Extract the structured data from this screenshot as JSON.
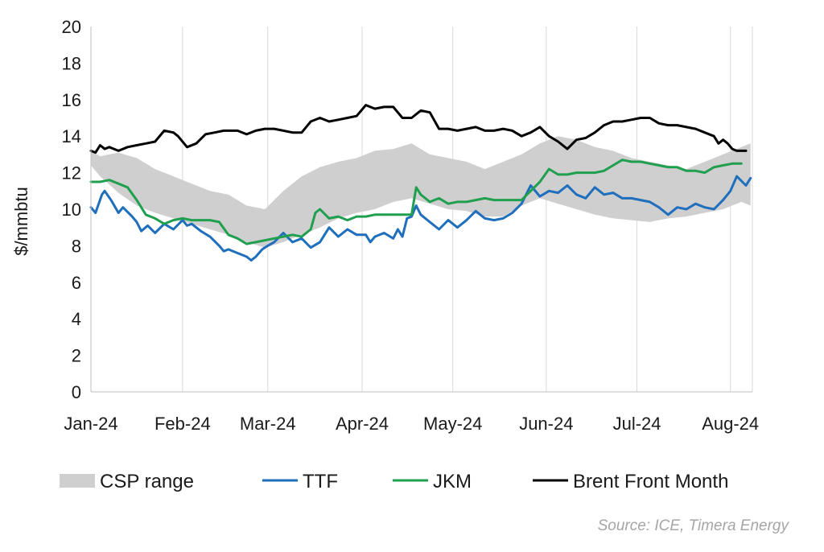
{
  "chart_data": {
    "type": "line",
    "ylabel": "$/mmbtu",
    "xlabel": "",
    "ylim": [
      0,
      20
    ],
    "yticks": [
      0,
      2,
      4,
      6,
      8,
      10,
      12,
      14,
      16,
      18,
      20
    ],
    "xlim": [
      0,
      7.22
    ],
    "xticks": [
      {
        "label": "Jan-24",
        "pos": 0
      },
      {
        "label": "Feb-24",
        "pos": 1
      },
      {
        "label": "Mar-24",
        "pos": 1.93
      },
      {
        "label": "Apr-24",
        "pos": 2.96
      },
      {
        "label": "May-24",
        "pos": 3.95
      },
      {
        "label": "Jun-24",
        "pos": 4.97
      },
      {
        "label": "Jul-24",
        "pos": 5.96
      },
      {
        "label": "Aug-24",
        "pos": 6.98
      }
    ],
    "grid": "vertical",
    "legend": [
      {
        "key": "csp",
        "label": "CSP range",
        "kind": "area",
        "color": "#d0cfd0"
      },
      {
        "key": "ttf",
        "label": "TTF",
        "kind": "line",
        "color": "#1f6fbd"
      },
      {
        "key": "jkm",
        "label": "JKM",
        "kind": "line",
        "color": "#20a04f"
      },
      {
        "key": "brent",
        "label": "Brent Front Month",
        "kind": "line",
        "color": "#000000"
      }
    ],
    "band": {
      "name": "CSP range",
      "x": [
        0,
        0.1,
        0.3,
        0.5,
        0.7,
        0.9,
        1.1,
        1.3,
        1.5,
        1.7,
        1.9,
        2.1,
        2.3,
        2.5,
        2.7,
        2.9,
        3.1,
        3.3,
        3.5,
        3.7,
        3.9,
        4.1,
        4.3,
        4.5,
        4.7,
        4.9,
        5.1,
        5.3,
        5.5,
        5.7,
        5.9,
        6.1,
        6.3,
        6.5,
        6.7,
        6.9,
        7.1,
        7.2
      ],
      "upper": [
        13.2,
        12.9,
        13.1,
        12.8,
        12.2,
        11.8,
        11.4,
        11.0,
        10.8,
        10.2,
        10.0,
        11.0,
        11.8,
        12.3,
        12.6,
        12.8,
        13.2,
        13.3,
        13.6,
        13.0,
        12.8,
        12.6,
        12.2,
        12.6,
        13.0,
        13.6,
        14.0,
        13.8,
        13.4,
        13.2,
        12.8,
        12.6,
        12.4,
        12.2,
        12.6,
        13.0,
        13.4,
        13.6
      ],
      "lower": [
        12.4,
        11.8,
        10.9,
        10.2,
        9.8,
        9.5,
        9.2,
        8.9,
        8.6,
        8.2,
        7.9,
        8.2,
        8.6,
        9.0,
        9.5,
        9.8,
        10.0,
        10.4,
        10.6,
        10.3,
        10.0,
        9.9,
        9.6,
        9.6,
        10.2,
        10.6,
        10.3,
        10.0,
        9.7,
        9.5,
        9.4,
        9.3,
        9.5,
        9.6,
        9.8,
        10.0,
        10.4,
        10.2
      ]
    },
    "series": [
      {
        "name": "TTF",
        "key": "ttf",
        "color": "#1f6fbd",
        "x": [
          0,
          0.05,
          0.12,
          0.15,
          0.22,
          0.3,
          0.35,
          0.45,
          0.5,
          0.55,
          0.62,
          0.7,
          0.8,
          0.9,
          1.0,
          1.05,
          1.1,
          1.2,
          1.3,
          1.4,
          1.45,
          1.5,
          1.6,
          1.7,
          1.75,
          1.8,
          1.87,
          1.93,
          2.0,
          2.1,
          2.2,
          2.3,
          2.4,
          2.5,
          2.6,
          2.7,
          2.8,
          2.9,
          3.0,
          3.05,
          3.1,
          3.2,
          3.3,
          3.35,
          3.4,
          3.45,
          3.5,
          3.55,
          3.6,
          3.7,
          3.8,
          3.9,
          4.0,
          4.1,
          4.2,
          4.3,
          4.4,
          4.5,
          4.6,
          4.7,
          4.8,
          4.9,
          5.0,
          5.1,
          5.2,
          5.3,
          5.4,
          5.5,
          5.6,
          5.7,
          5.8,
          5.9,
          6.0,
          6.1,
          6.2,
          6.3,
          6.4,
          6.5,
          6.6,
          6.7,
          6.8,
          6.9,
          6.98,
          7.05,
          7.15,
          7.2
        ],
        "y": [
          10.1,
          9.8,
          10.8,
          11.0,
          10.5,
          9.8,
          10.1,
          9.6,
          9.3,
          8.8,
          9.1,
          8.7,
          9.2,
          8.9,
          9.4,
          9.1,
          9.2,
          8.8,
          8.5,
          8.0,
          7.7,
          7.8,
          7.6,
          7.4,
          7.2,
          7.4,
          7.8,
          8.0,
          8.2,
          8.7,
          8.2,
          8.4,
          7.9,
          8.2,
          9.0,
          8.5,
          8.9,
          8.6,
          8.6,
          8.2,
          8.5,
          8.7,
          8.4,
          8.9,
          8.5,
          9.5,
          9.6,
          10.2,
          9.7,
          9.3,
          8.9,
          9.4,
          9.0,
          9.4,
          9.9,
          9.5,
          9.4,
          9.5,
          9.8,
          10.3,
          11.3,
          10.7,
          11.0,
          10.9,
          11.3,
          10.8,
          10.6,
          11.2,
          10.8,
          10.9,
          10.6,
          10.6,
          10.5,
          10.4,
          10.1,
          9.7,
          10.1,
          10.0,
          10.3,
          10.1,
          10.0,
          10.5,
          11.0,
          11.8,
          11.3,
          11.7
        ]
      },
      {
        "name": "JKM",
        "key": "jkm",
        "color": "#20a04f",
        "x": [
          0,
          0.1,
          0.2,
          0.3,
          0.4,
          0.5,
          0.6,
          0.7,
          0.8,
          0.9,
          1.0,
          1.1,
          1.2,
          1.3,
          1.4,
          1.5,
          1.6,
          1.7,
          1.8,
          1.9,
          2.0,
          2.1,
          2.2,
          2.3,
          2.4,
          2.45,
          2.5,
          2.6,
          2.7,
          2.8,
          2.9,
          3.0,
          3.1,
          3.2,
          3.3,
          3.4,
          3.5,
          3.55,
          3.6,
          3.7,
          3.8,
          3.9,
          4.0,
          4.1,
          4.2,
          4.3,
          4.4,
          4.5,
          4.6,
          4.7,
          4.8,
          4.9,
          5.0,
          5.1,
          5.2,
          5.3,
          5.4,
          5.5,
          5.6,
          5.7,
          5.8,
          5.9,
          6.0,
          6.1,
          6.2,
          6.3,
          6.4,
          6.5,
          6.6,
          6.7,
          6.8,
          6.9,
          7.0,
          7.1
        ],
        "y": [
          11.5,
          11.5,
          11.6,
          11.4,
          11.2,
          10.5,
          9.7,
          9.5,
          9.2,
          9.4,
          9.5,
          9.4,
          9.4,
          9.4,
          9.3,
          8.6,
          8.4,
          8.1,
          8.2,
          8.3,
          8.4,
          8.5,
          8.6,
          8.5,
          8.9,
          9.8,
          10.0,
          9.5,
          9.6,
          9.4,
          9.6,
          9.6,
          9.7,
          9.7,
          9.7,
          9.7,
          9.7,
          11.2,
          10.8,
          10.4,
          10.6,
          10.3,
          10.4,
          10.4,
          10.5,
          10.6,
          10.5,
          10.5,
          10.5,
          10.5,
          11.0,
          11.5,
          12.2,
          11.9,
          11.9,
          12.0,
          12.0,
          12.0,
          12.1,
          12.4,
          12.7,
          12.6,
          12.6,
          12.5,
          12.4,
          12.3,
          12.3,
          12.1,
          12.1,
          12.0,
          12.3,
          12.4,
          12.5,
          12.5
        ]
      },
      {
        "name": "Brent Front Month",
        "key": "brent",
        "color": "#000000",
        "x": [
          0,
          0.05,
          0.1,
          0.15,
          0.2,
          0.3,
          0.4,
          0.5,
          0.6,
          0.7,
          0.8,
          0.9,
          0.95,
          1.05,
          1.15,
          1.25,
          1.35,
          1.45,
          1.5,
          1.6,
          1.7,
          1.8,
          1.9,
          2.0,
          2.1,
          2.2,
          2.3,
          2.4,
          2.5,
          2.6,
          2.7,
          2.8,
          2.9,
          3.0,
          3.1,
          3.2,
          3.3,
          3.4,
          3.5,
          3.6,
          3.7,
          3.8,
          3.9,
          4.0,
          4.1,
          4.2,
          4.3,
          4.4,
          4.5,
          4.6,
          4.7,
          4.8,
          4.9,
          5.0,
          5.1,
          5.2,
          5.3,
          5.4,
          5.5,
          5.6,
          5.7,
          5.8,
          5.9,
          6.0,
          6.1,
          6.2,
          6.3,
          6.4,
          6.5,
          6.6,
          6.7,
          6.8,
          6.85,
          6.9,
          6.95,
          7.0,
          7.05,
          7.1,
          7.15
        ],
        "y": [
          13.2,
          13.1,
          13.5,
          13.3,
          13.4,
          13.2,
          13.4,
          13.5,
          13.6,
          13.7,
          14.3,
          14.2,
          14.0,
          13.4,
          13.6,
          14.1,
          14.2,
          14.3,
          14.3,
          14.3,
          14.1,
          14.3,
          14.4,
          14.4,
          14.3,
          14.2,
          14.2,
          14.8,
          15.0,
          14.8,
          14.9,
          15.0,
          15.1,
          15.7,
          15.5,
          15.6,
          15.6,
          15.0,
          15.0,
          15.4,
          15.3,
          14.4,
          14.4,
          14.3,
          14.4,
          14.5,
          14.3,
          14.3,
          14.4,
          14.3,
          14.0,
          14.2,
          14.5,
          14.0,
          13.7,
          13.3,
          13.8,
          13.9,
          14.2,
          14.6,
          14.8,
          14.8,
          14.9,
          15.0,
          15.0,
          14.7,
          14.6,
          14.6,
          14.5,
          14.4,
          14.2,
          14.0,
          13.6,
          13.8,
          13.6,
          13.3,
          13.2,
          13.2,
          13.2
        ]
      }
    ]
  },
  "source_note": "Source: ICE, Timera Energy"
}
